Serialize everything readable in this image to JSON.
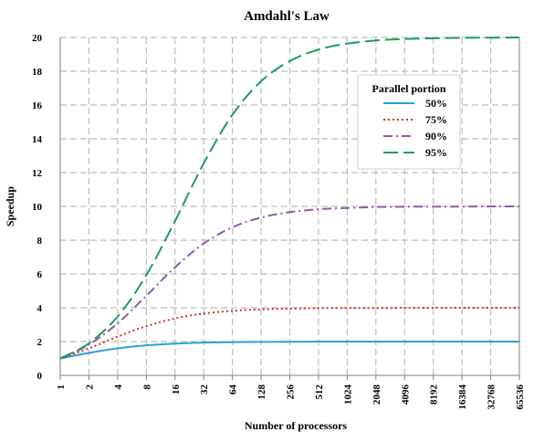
{
  "chart_data": {
    "type": "line",
    "title": "Amdahl's Law",
    "xlabel": "Number of processors",
    "ylabel": "Speedup",
    "x_scale": "log2",
    "x_categories": [
      "1",
      "2",
      "4",
      "8",
      "16",
      "32",
      "64",
      "128",
      "256",
      "512",
      "1024",
      "2048",
      "4096",
      "8192",
      "16384",
      "32768",
      "65536"
    ],
    "x": [
      1,
      2,
      4,
      8,
      16,
      32,
      64,
      128,
      256,
      512,
      1024,
      2048,
      4096,
      8192,
      16384,
      32768,
      65536
    ],
    "ylim": [
      0,
      20
    ],
    "yticks": [
      0,
      2,
      4,
      6,
      8,
      10,
      12,
      14,
      16,
      18,
      20
    ],
    "grid": "dashed gray at every x tick and every y tick",
    "legend": {
      "title": "Parallel portion",
      "placement": "top-right"
    },
    "series": [
      {
        "name": "50%",
        "color": "#2e9fd8",
        "style": "solid",
        "values": [
          1.0,
          1.33,
          1.6,
          1.78,
          1.88,
          1.94,
          1.97,
          1.98,
          1.99,
          2.0,
          2.0,
          2.0,
          2.0,
          2.0,
          2.0,
          2.0,
          2.0
        ]
      },
      {
        "name": "75%",
        "color": "#d62c2c",
        "style": "dotted",
        "values": [
          1.0,
          1.6,
          2.29,
          2.91,
          3.37,
          3.66,
          3.82,
          3.91,
          3.95,
          3.98,
          3.99,
          3.99,
          4.0,
          4.0,
          4.0,
          4.0,
          4.0
        ]
      },
      {
        "name": "90%",
        "color": "#8e5aa8",
        "style": "dashdot",
        "values": [
          1.0,
          1.82,
          3.08,
          4.71,
          6.4,
          7.8,
          8.77,
          9.34,
          9.66,
          9.83,
          9.91,
          9.96,
          9.98,
          9.99,
          9.99,
          10.0,
          10.0
        ]
      },
      {
        "name": "95%",
        "color": "#1b9e5a",
        "style": "longdash",
        "values": [
          1.0,
          1.9,
          3.48,
          5.93,
          9.14,
          12.55,
          15.42,
          17.41,
          18.6,
          19.28,
          19.63,
          19.82,
          19.91,
          19.95,
          19.98,
          19.99,
          20.0
        ]
      }
    ]
  }
}
